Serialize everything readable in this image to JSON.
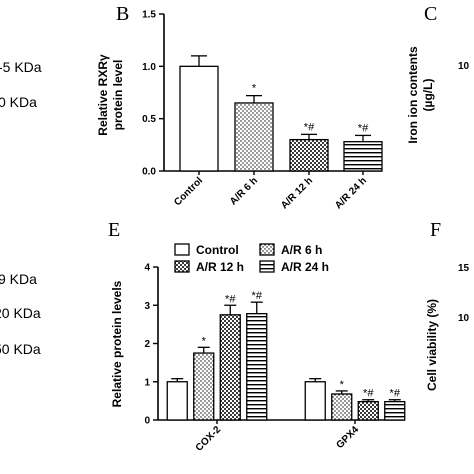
{
  "left_labels": [
    "-5 KDa",
    "0 KDa",
    "9 KDa",
    "20 KDa",
    "50 KDa"
  ],
  "panels": {
    "b": "B",
    "c": "C",
    "e": "E",
    "f": "F"
  },
  "right_labels": {
    "c_ylabel_line1": "Iron ion contents",
    "c_ylabel_line2": "(µg/L)",
    "c_tick_top": "10",
    "f_ylabel": "Cell viability (%)",
    "f_ticks": [
      "15",
      "10"
    ]
  },
  "chart_data": [
    {
      "type": "bar",
      "panel": "B",
      "ylabel_line1": "Relative RXRγ",
      "ylabel_line2": "protein level",
      "categories": [
        "Control",
        "A/R 6 h",
        "A/R 12 h",
        "A/R 24 h"
      ],
      "values": [
        1.0,
        0.65,
        0.3,
        0.28
      ],
      "errors": [
        0.1,
        0.07,
        0.05,
        0.06
      ],
      "annotations": [
        "",
        "*",
        "*#",
        "*#"
      ],
      "yticks": [
        "0.0",
        "0.5",
        "1.0",
        "1.5"
      ],
      "ylim": [
        0,
        1.5
      ]
    },
    {
      "type": "bar",
      "panel": "E",
      "ylabel": "Relative protein levels",
      "categories": [
        "COX-2",
        "GPX4"
      ],
      "legend": [
        "Control",
        "A/R 6 h",
        "A/R 12 h",
        "A/R 24 h"
      ],
      "series": [
        {
          "name": "Control",
          "values": [
            1.0,
            1.0
          ],
          "errors": [
            0.08,
            0.08
          ],
          "annotations": [
            "",
            ""
          ]
        },
        {
          "name": "A/R 6 h",
          "values": [
            1.75,
            0.68
          ],
          "errors": [
            0.15,
            0.08
          ],
          "annotations": [
            "*",
            "*"
          ]
        },
        {
          "name": "A/R 12 h",
          "values": [
            2.75,
            0.48
          ],
          "errors": [
            0.25,
            0.05
          ],
          "annotations": [
            "*#",
            "*#"
          ]
        },
        {
          "name": "A/R 24 h",
          "values": [
            2.78,
            0.48
          ],
          "errors": [
            0.3,
            0.05
          ],
          "annotations": [
            "*#",
            "*#"
          ]
        }
      ],
      "yticks": [
        "0",
        "1",
        "2",
        "3",
        "4"
      ],
      "ylim": [
        0,
        4
      ]
    }
  ]
}
